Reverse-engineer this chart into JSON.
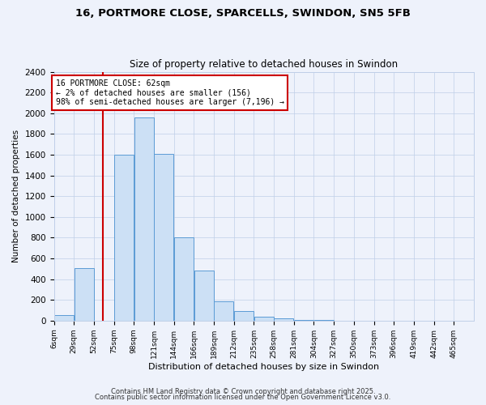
{
  "title1": "16, PORTMORE CLOSE, SPARCELLS, SWINDON, SN5 5FB",
  "title2": "Size of property relative to detached houses in Swindon",
  "xlabel": "Distribution of detached houses by size in Swindon",
  "ylabel": "Number of detached properties",
  "bar_labels": [
    "6sqm",
    "29sqm",
    "52sqm",
    "75sqm",
    "98sqm",
    "121sqm",
    "144sqm",
    "166sqm",
    "189sqm",
    "212sqm",
    "235sqm",
    "258sqm",
    "281sqm",
    "304sqm",
    "327sqm",
    "350sqm",
    "373sqm",
    "396sqm",
    "419sqm",
    "442sqm",
    "465sqm"
  ],
  "bar_values": [
    50,
    510,
    0,
    1600,
    1960,
    1610,
    800,
    480,
    190,
    90,
    35,
    20,
    10,
    5,
    2,
    2,
    0,
    0,
    2,
    0,
    2
  ],
  "bar_color": "#cce0f5",
  "bar_edge_color": "#5b9bd5",
  "vline_x_idx": 1.87,
  "vline_color": "#cc0000",
  "annotation_title": "16 PORTMORE CLOSE: 62sqm",
  "annotation_line1": "← 2% of detached houses are smaller (156)",
  "annotation_line2": "98% of semi-detached houses are larger (7,196) →",
  "ann_box_edge": "#cc0000",
  "ann_box_face": "#ffffff",
  "ylim": [
    0,
    2400
  ],
  "yticks": [
    0,
    200,
    400,
    600,
    800,
    1000,
    1200,
    1400,
    1600,
    1800,
    2000,
    2200,
    2400
  ],
  "footer1": "Contains HM Land Registry data © Crown copyright and database right 2025.",
  "footer2": "Contains public sector information licensed under the Open Government Licence v3.0.",
  "bg_color": "#eef2fb",
  "grid_color": "#c0cfe8",
  "bin_width": 23
}
